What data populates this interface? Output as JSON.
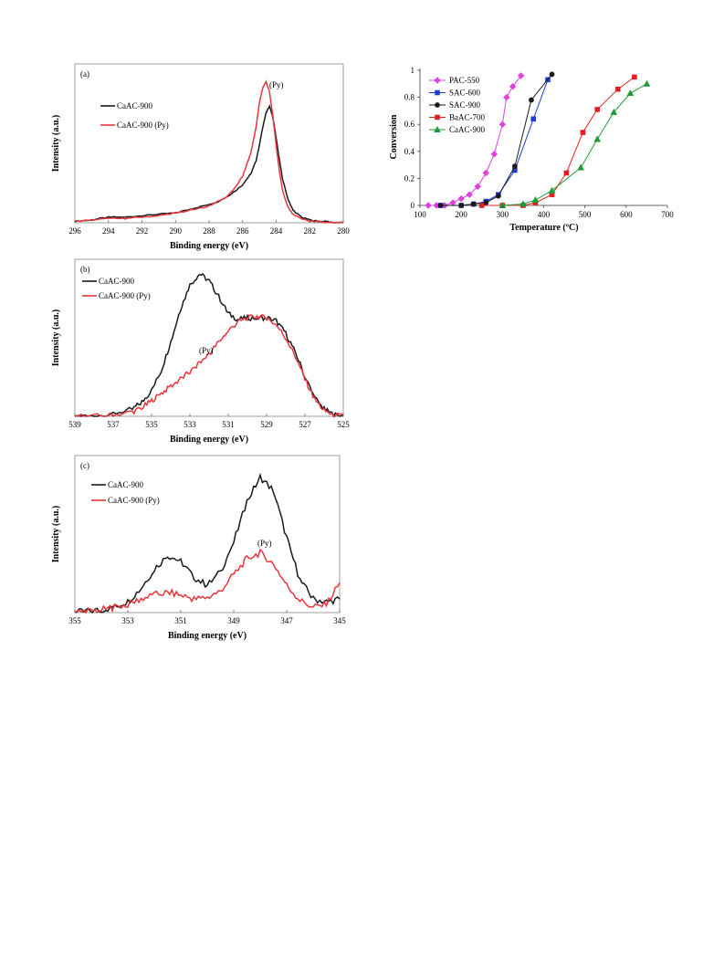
{
  "figure": {
    "panels": [
      {
        "label": "(a)",
        "xlabel": "Binding energy (eV)",
        "ylabel": "Intensity (a.u.)",
        "annotation": "(Py)"
      },
      {
        "label": "(b)",
        "xlabel": "Binding energy (eV)",
        "ylabel": "Intensity (a.u.)",
        "annotation": "(Py)"
      },
      {
        "label": "(c)",
        "xlabel": "Binding energy (eV)",
        "ylabel": "Intensity (a.u.)",
        "annotation": "(Py)"
      },
      {
        "label": "",
        "xlabel": "Temperature (ºC)",
        "ylabel": "Conversion",
        "annotation": ""
      }
    ]
  },
  "colors": {
    "black": "#1a1a1a",
    "red": "#e8353b",
    "magenta": "#e040e0",
    "blue": "#1f3fd0",
    "darkred": "#e02020",
    "green": "#1f9a3a"
  },
  "chart_data": [
    {
      "type": "line",
      "panel": "(a)",
      "xlabel": "Binding energy (eV)",
      "ylabel": "Intensity (a.u.)",
      "xlim": [
        296,
        280
      ],
      "xticks": [
        296,
        294,
        292,
        290,
        288,
        286,
        284,
        282,
        280
      ],
      "ylim": [
        0,
        1.05
      ],
      "x": [
        296,
        295,
        294,
        293,
        292,
        291,
        290,
        289,
        288,
        287.5,
        287,
        286.5,
        286,
        285.5,
        285.2,
        285,
        284.8,
        284.6,
        284.4,
        284.2,
        284,
        283.8,
        283.6,
        283.3,
        283,
        282.5,
        282,
        281.5,
        281,
        280.5,
        280
      ],
      "series": [
        {
          "name": "CaAC-900",
          "color": "black",
          "values": [
            0.01,
            0.02,
            0.04,
            0.04,
            0.05,
            0.06,
            0.07,
            0.1,
            0.13,
            0.15,
            0.18,
            0.22,
            0.27,
            0.35,
            0.44,
            0.55,
            0.68,
            0.78,
            0.83,
            0.75,
            0.6,
            0.44,
            0.3,
            0.17,
            0.09,
            0.04,
            0.02,
            0.01,
            0.01,
            0.0,
            0.0
          ]
        },
        {
          "name": "CaAC-900 (Py)",
          "color": "red",
          "values": [
            0.01,
            0.02,
            0.03,
            0.03,
            0.04,
            0.05,
            0.07,
            0.09,
            0.12,
            0.15,
            0.18,
            0.24,
            0.33,
            0.5,
            0.68,
            0.85,
            0.96,
            1.0,
            0.93,
            0.76,
            0.55,
            0.36,
            0.22,
            0.11,
            0.06,
            0.03,
            0.01,
            0.01,
            0.0,
            0.0,
            0.0
          ]
        }
      ]
    },
    {
      "type": "line",
      "panel": "(b)",
      "xlabel": "Binding energy (eV)",
      "ylabel": "Intensity (a.u.)",
      "xlim": [
        539,
        525
      ],
      "xticks": [
        539,
        537,
        535,
        533,
        531,
        529,
        527,
        525
      ],
      "ylim": [
        0,
        1.05
      ],
      "x": [
        539,
        538,
        537,
        536,
        535.5,
        535,
        534.5,
        534,
        533.5,
        533,
        532.5,
        532,
        531.5,
        531,
        530.5,
        530,
        529.5,
        529,
        528.5,
        528,
        527.5,
        527,
        526.5,
        526,
        525.5,
        525
      ],
      "series": [
        {
          "name": "CaAC-900",
          "color": "black",
          "values": [
            0.0,
            0.0,
            0.02,
            0.05,
            0.1,
            0.18,
            0.32,
            0.52,
            0.75,
            0.92,
            1.0,
            0.95,
            0.84,
            0.72,
            0.68,
            0.69,
            0.69,
            0.69,
            0.67,
            0.58,
            0.45,
            0.28,
            0.13,
            0.05,
            0.01,
            0.0
          ]
        },
        {
          "name": "CaAC-900 (Py)",
          "color": "red",
          "values": [
            0.0,
            0.0,
            0.01,
            0.03,
            0.06,
            0.11,
            0.16,
            0.21,
            0.26,
            0.31,
            0.37,
            0.44,
            0.52,
            0.6,
            0.66,
            0.69,
            0.7,
            0.69,
            0.64,
            0.55,
            0.42,
            0.26,
            0.12,
            0.04,
            0.01,
            0.0
          ]
        }
      ]
    },
    {
      "type": "line",
      "panel": "(c)",
      "xlabel": "Binding energy (eV)",
      "ylabel": "Intensity (a.u.)",
      "xlim": [
        355,
        345
      ],
      "xticks": [
        355,
        353,
        351,
        349,
        347,
        345
      ],
      "ylim": [
        0,
        1.05
      ],
      "x": [
        355,
        354.5,
        354,
        353.5,
        353,
        352.5,
        352,
        351.5,
        351,
        350.5,
        350,
        349.5,
        349,
        348.5,
        348,
        347.5,
        347,
        346.5,
        346,
        345.5,
        345
      ],
      "series": [
        {
          "name": "CaAC-900",
          "color": "black",
          "values": [
            0.0,
            0.01,
            0.02,
            0.04,
            0.08,
            0.18,
            0.32,
            0.42,
            0.38,
            0.26,
            0.2,
            0.3,
            0.52,
            0.82,
            1.0,
            0.9,
            0.55,
            0.24,
            0.1,
            0.08,
            0.1
          ]
        },
        {
          "name": "CaAC-900 (Py)",
          "color": "red",
          "values": [
            0.0,
            0.01,
            0.02,
            0.04,
            0.06,
            0.1,
            0.13,
            0.15,
            0.13,
            0.1,
            0.11,
            0.16,
            0.28,
            0.4,
            0.44,
            0.36,
            0.2,
            0.09,
            0.04,
            0.06,
            0.22
          ]
        }
      ]
    },
    {
      "type": "line",
      "panel": "conversion",
      "xlabel": "Temperature (ºC)",
      "ylabel": "Conversion",
      "xlim": [
        100,
        700
      ],
      "xticks": [
        100,
        200,
        300,
        400,
        500,
        600,
        700
      ],
      "ylim": [
        0,
        1
      ],
      "yticks": [
        0,
        0.2,
        0.4,
        0.6,
        0.8,
        1
      ],
      "legend": "top-left",
      "series": [
        {
          "name": "PAC-550",
          "color": "magenta",
          "marker": "diamond",
          "x": [
            120,
            140,
            160,
            180,
            200,
            220,
            240,
            260,
            280,
            300,
            310,
            325,
            345
          ],
          "values": [
            0.0,
            0.0,
            0.0,
            0.02,
            0.05,
            0.08,
            0.14,
            0.24,
            0.38,
            0.6,
            0.8,
            0.88,
            0.96
          ]
        },
        {
          "name": "SAC-600",
          "color": "blue",
          "marker": "square",
          "x": [
            150,
            200,
            230,
            260,
            290,
            330,
            375,
            410
          ],
          "values": [
            0.0,
            0.0,
            0.01,
            0.03,
            0.08,
            0.26,
            0.64,
            0.93
          ]
        },
        {
          "name": "SAC-900",
          "color": "black",
          "marker": "circle",
          "x": [
            150,
            200,
            230,
            260,
            290,
            330,
            370,
            420
          ],
          "values": [
            0.0,
            0.0,
            0.01,
            0.02,
            0.07,
            0.29,
            0.78,
            0.97
          ]
        },
        {
          "name": "BaAC-700",
          "color": "darkred",
          "marker": "square",
          "x": [
            250,
            300,
            350,
            380,
            420,
            455,
            495,
            530,
            580,
            620
          ],
          "values": [
            0.0,
            0.0,
            0.0,
            0.02,
            0.08,
            0.24,
            0.54,
            0.71,
            0.86,
            0.95
          ]
        },
        {
          "name": "CaAC-900",
          "color": "green",
          "marker": "triangle",
          "x": [
            300,
            350,
            380,
            420,
            490,
            530,
            570,
            610,
            650
          ],
          "values": [
            0.0,
            0.01,
            0.04,
            0.11,
            0.28,
            0.49,
            0.69,
            0.83,
            0.9
          ]
        }
      ]
    }
  ]
}
